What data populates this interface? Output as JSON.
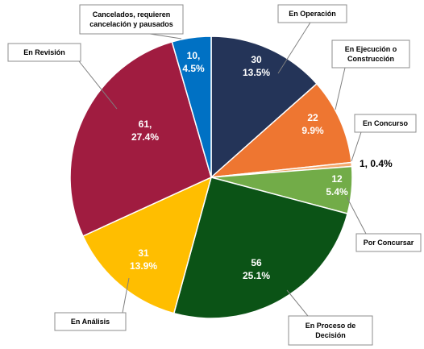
{
  "chart_data": {
    "type": "pie",
    "title": "",
    "slices": [
      {
        "category": "En Operación",
        "value": 30,
        "percent": "13.5%",
        "color": "#243458"
      },
      {
        "category": "En Ejecución o Construcción",
        "value": 22,
        "percent": "9.9%",
        "color": "#ee7631"
      },
      {
        "category": "En Concurso",
        "value": 1,
        "percent": "0.4%",
        "color": "#f2a96e"
      },
      {
        "category": "Por Concursar",
        "value": 12,
        "percent": "5.4%",
        "color": "#72ac48"
      },
      {
        "category": "En Proceso de Decisión",
        "value": 56,
        "percent": "25.1%",
        "color": "#0b5316"
      },
      {
        "category": "En Análisis",
        "value": 31,
        "percent": "13.9%",
        "color": "#ffbe00"
      },
      {
        "category": "En Revisión",
        "value": 61,
        "percent": "27.4%",
        "color": "#a01c40"
      },
      {
        "category": "Cancelados, requieren cancelación y pausados",
        "value": 10,
        "percent": "4.5%",
        "color": "#0071c4"
      }
    ],
    "callout_lines": [
      [
        "En Operación"
      ],
      [
        "En Ejecución o",
        "Construcción"
      ],
      [
        "En Concurso"
      ],
      [
        "Por Concursar"
      ],
      [
        "En Proceso de",
        "Decisión"
      ],
      [
        "En Análisis"
      ],
      [
        "En Revisión"
      ],
      [
        "Cancelados, requieren",
        "cancelación y pausados"
      ]
    ],
    "slice_value_labels": [
      "30",
      "22",
      "1,",
      "12",
      "56",
      "31",
      "61,",
      "10,"
    ],
    "outside_label": "1, 0.4%",
    "legend": "none"
  }
}
